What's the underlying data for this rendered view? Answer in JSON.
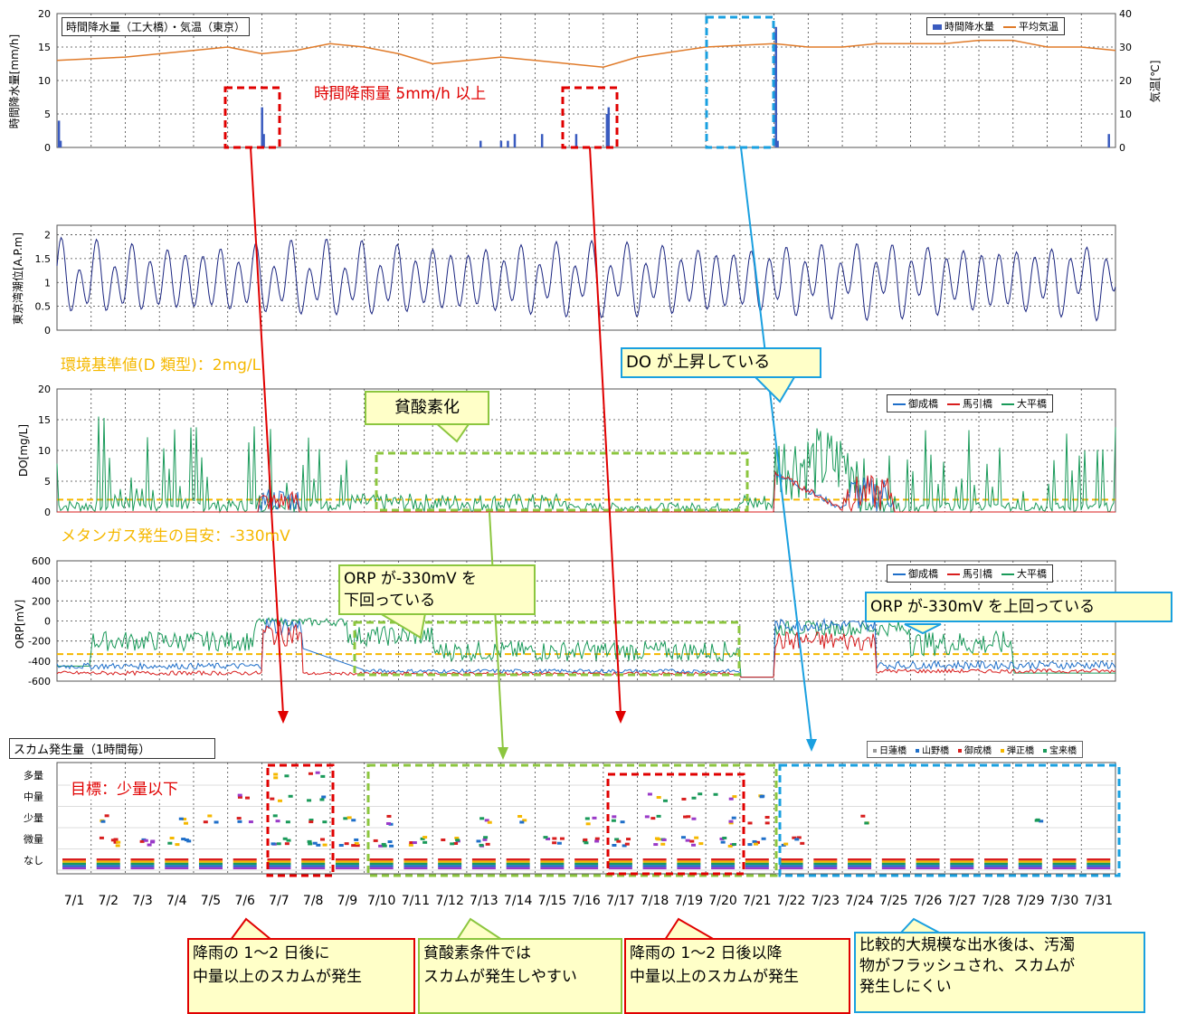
{
  "panel1": {
    "title": "時間降水量（工大橋）・気温（東京）",
    "ylabel_left": "時間降水量[mm/h]",
    "ylabel_right": "気温[℃]",
    "yticks_left": [
      "20",
      "15",
      "10",
      "5",
      "0"
    ],
    "yticks_right": [
      "40",
      "30",
      "20",
      "10",
      "0"
    ],
    "legend": [
      "時間降水量",
      "平均気温"
    ]
  },
  "panel2": {
    "ylabel": "東京湾潮位[A.P.m]",
    "yticks": [
      "2",
      "1.5",
      "1",
      "0.5",
      "0"
    ]
  },
  "panel3": {
    "ylabel": "DO[mg/L]",
    "yticks": [
      "20",
      "15",
      "10",
      "5",
      "0"
    ],
    "legend": [
      "御成橋",
      "馬引橋",
      "大平橋"
    ]
  },
  "panel4": {
    "ylabel": "ORP[mV]",
    "yticks": [
      "600",
      "400",
      "200",
      "0",
      "-200",
      "-400",
      "-600"
    ],
    "legend": [
      "御成橋",
      "馬引橋",
      "大平橋"
    ]
  },
  "panel5": {
    "title": "スカム発生量（1時間毎）",
    "levels": [
      "多量",
      "中量",
      "少量",
      "微量",
      "なし"
    ],
    "legend": [
      "日蓮橋",
      "山野橋",
      "御成橋",
      "弾正橋",
      "宝来橋"
    ]
  },
  "dates": [
    "7/1",
    "7/2",
    "7/3",
    "7/4",
    "7/5",
    "7/6",
    "7/7",
    "7/8",
    "7/9",
    "7/10",
    "7/11",
    "7/12",
    "7/13",
    "7/14",
    "7/15",
    "7/16",
    "7/17",
    "7/18",
    "7/19",
    "7/20",
    "7/21",
    "7/22",
    "7/23",
    "7/24",
    "7/25",
    "7/26",
    "7/27",
    "7/28",
    "7/29",
    "7/30",
    "7/31"
  ],
  "annotations": {
    "rain5": "時間降雨量 5mm/h 以上",
    "do_std": "環境基準値(D 類型)：2mg/L",
    "methane": "メタンガス発生の目安：-330mV",
    "target": "目標：少量以下",
    "hypoxia": "貧酸素化",
    "do_rise": "DO が上昇している",
    "orp_below_1": "ORP が-330mV を",
    "orp_below_2": "下回っている",
    "orp_above": "ORP が-330mV を上回っている"
  },
  "callouts": {
    "c1": [
      "降雨の 1～2 日後に",
      "中量以上のスカムが発生"
    ],
    "c2": [
      "貧酸素条件では",
      "スカムが発生しやすい"
    ],
    "c3": [
      "降雨の 1～2 日後以降",
      "中量以上のスカムが発生"
    ],
    "c4": [
      "比較的大規模な出水後は、汚濁",
      "物がフラッシュされ、スカムが",
      "発生しにくい"
    ]
  },
  "colors": {
    "red": "#e00000",
    "green": "#8cc63f",
    "blue": "#1aa0e0",
    "orange": "#f5b800",
    "rain": "#3a5bbf",
    "temp": "#e07b2a",
    "tide": "#1a2580",
    "s_onari": "#1f6fc9",
    "s_umahiki": "#d81e1e",
    "s_ohira": "#1a9a5a"
  },
  "chart_data": [
    {
      "type": "bar",
      "title": "時間降水量（工大橋）・気温（東京）",
      "ylabel": "時間降水量[mm/h]",
      "ylim": [
        0,
        20
      ],
      "series": [
        {
          "name": "時間降水量",
          "x": [
            1.05,
            1.1,
            7.0,
            7.05,
            13.4,
            14.0,
            14.2,
            14.4,
            15.2,
            16.2,
            17.1,
            17.15,
            22.05,
            22.1,
            31.8
          ],
          "values": [
            4,
            1,
            6,
            2,
            1,
            1,
            1,
            2,
            2,
            2,
            5,
            6,
            18,
            1,
            2
          ]
        },
        {
          "name": "平均気温",
          "x": [
            1,
            3,
            5,
            6,
            7,
            8,
            9,
            10,
            11,
            12,
            14,
            15,
            16,
            17,
            18,
            20,
            22,
            23,
            24,
            25,
            26,
            27,
            28,
            29,
            30,
            31,
            32
          ],
          "values": [
            26,
            27,
            29,
            30,
            28,
            29,
            31,
            30,
            28,
            25,
            27,
            26,
            25,
            24,
            27,
            30,
            31,
            30,
            30,
            31,
            31,
            31,
            32,
            32,
            30,
            30,
            29
          ],
          "ylim": [
            0,
            40
          ]
        }
      ]
    },
    {
      "type": "line",
      "ylabel": "東京湾潮位[A.P.m]",
      "ylim": [
        0,
        2.2
      ]
    },
    {
      "type": "line",
      "ylabel": "DO[mg/L]",
      "ylim": [
        0,
        20
      ]
    },
    {
      "type": "line",
      "ylabel": "ORP[mV]",
      "ylim": [
        -600,
        600
      ]
    },
    {
      "type": "scatter",
      "title": "スカム発生量（1時間毎）"
    }
  ]
}
